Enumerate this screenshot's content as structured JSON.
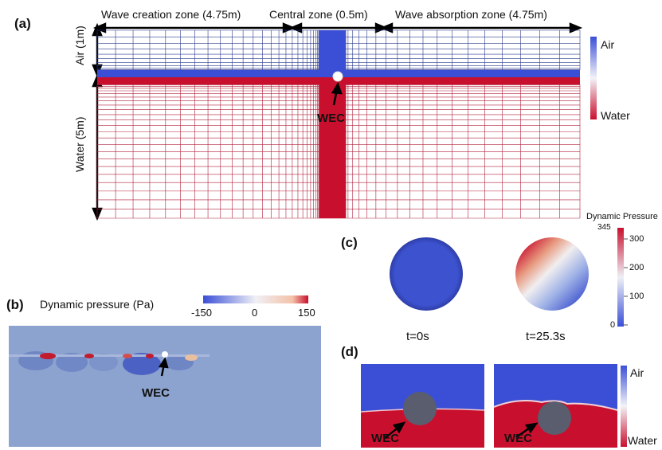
{
  "panels": {
    "a": {
      "label": "(a)",
      "zones": {
        "creation": "Wave creation zone (4.75m)",
        "central": "Central zone (0.5m)",
        "absorption": "Wave absorption zone (4.75m)"
      },
      "air_label": "Air (1m)",
      "water_label": "Water (5m)",
      "wec_label": "WEC",
      "legend": {
        "top": "Air",
        "bottom": "Water"
      }
    },
    "b": {
      "label": "(b)",
      "title": "Dynamic pressure (Pa)",
      "colorbar": {
        "min": "-150",
        "mid": "0",
        "max": "150"
      },
      "wec_label": "WEC"
    },
    "c": {
      "label": "(c)",
      "colorbar_title": "Dynamic Pressure",
      "colorbar_ticks": {
        "max": "345",
        "t300": "300",
        "t200": "200",
        "t100": "100",
        "t0": "0"
      },
      "times": {
        "first": "t=0s",
        "second": "t=25.3s"
      }
    },
    "d": {
      "label": "(d)",
      "wec_label_left": "WEC",
      "wec_label_right": "WEC",
      "legend": {
        "top": "Air",
        "bottom": "Water"
      }
    }
  },
  "colors": {
    "air": "#3b4fd6",
    "water": "#c8102e",
    "mesh_air": "#2b3a8c",
    "mesh_water": "#b0203a",
    "background_b": "#8ca3cf",
    "wec_d": "#5a5d6e"
  }
}
